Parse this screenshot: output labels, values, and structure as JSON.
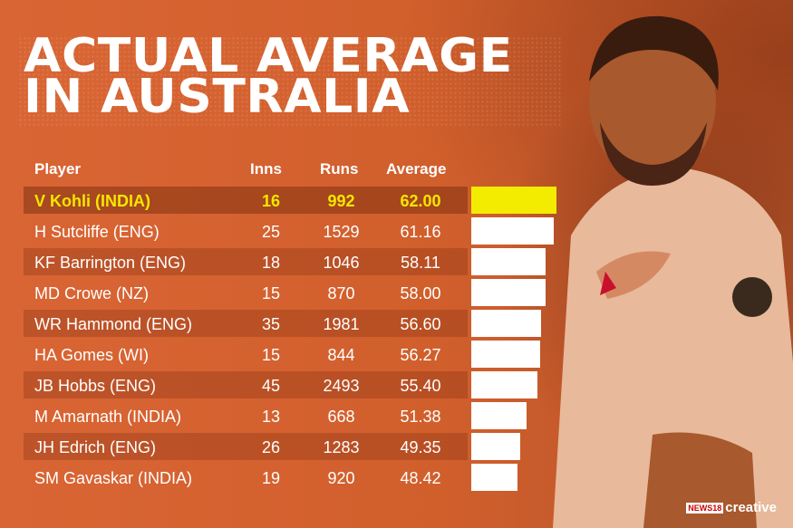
{
  "title_lines": [
    "ACTUAL AVERAGE",
    "IN AUSTRALIA"
  ],
  "headers": {
    "player": "Player",
    "inns": "Inns",
    "runs": "Runs",
    "average": "Average"
  },
  "chart_data": {
    "type": "bar",
    "title": "ACTUAL AVERAGE IN AUSTRALIA",
    "categories": [
      "V Kohli (INDIA)",
      "H Sutcliffe (ENG)",
      "KF Barrington (ENG)",
      "MD Crowe (NZ)",
      "WR Hammond (ENG)",
      "HA Gomes (WI)",
      "JB Hobbs (ENG)",
      "M Amarnath (INDIA)",
      "JH Edrich (ENG)",
      "SM Gavaskar (INDIA)"
    ],
    "inns": [
      "16",
      "25",
      "18",
      "15",
      "35",
      "15",
      "45",
      "13",
      "26",
      "19"
    ],
    "runs": [
      "992",
      "1529",
      "1046",
      "870",
      "1981",
      "844",
      "2493",
      "668",
      "1283",
      "920"
    ],
    "averages": [
      "62.00",
      "61.16",
      "58.11",
      "58.00",
      "56.60",
      "56.27",
      "55.40",
      "51.38",
      "49.35",
      "48.42"
    ],
    "values": [
      62.0,
      61.16,
      58.11,
      58.0,
      56.6,
      56.27,
      55.4,
      51.38,
      49.35,
      48.42
    ],
    "highlight_index": 0,
    "colors": {
      "highlight": "#f6e600",
      "bar": "#ffffff",
      "highlight_bar": "#f3ec00"
    }
  },
  "logo": {
    "badge": "NEWS18",
    "text": "creative"
  }
}
